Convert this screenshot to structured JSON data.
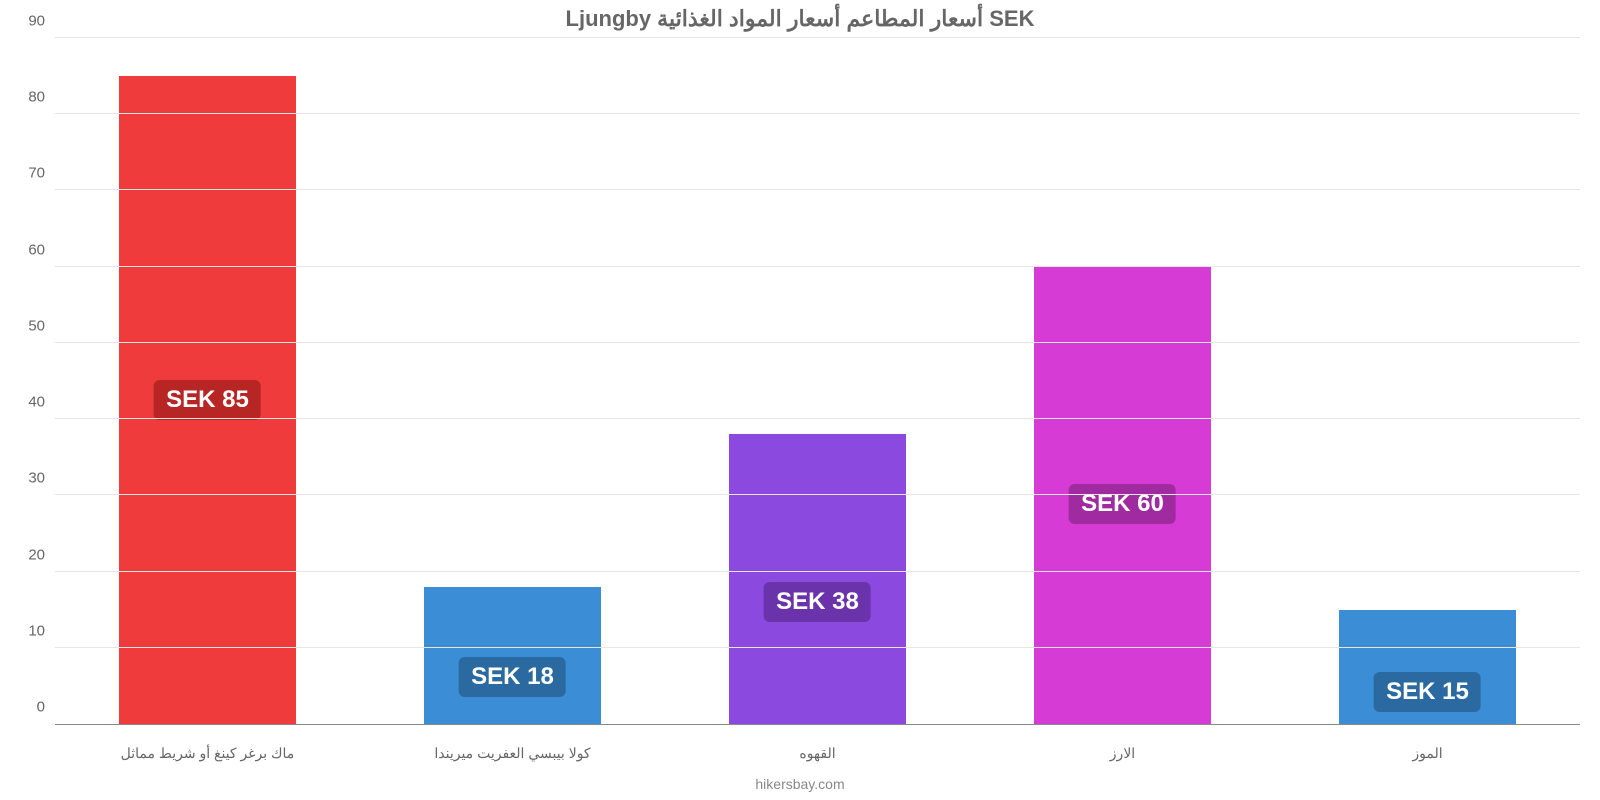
{
  "chart": {
    "type": "bar",
    "title": "Ljungby أسعار المطاعم أسعار المواد الغذائية SEK",
    "title_fontsize": 22,
    "title_color": "#666666",
    "background_color": "#ffffff",
    "grid_color": "#e6e6e6",
    "axis_color": "#888888",
    "axis_label_color": "#666666",
    "axis_label_fontsize": 15,
    "x_label_fontsize": 14,
    "ylim_min": 0,
    "ylim_max": 90,
    "ytick_step": 10,
    "bar_width_pct": 58,
    "value_badge_fontsize": 24,
    "value_badge_text_color": "#ffffff",
    "footer": "hikersbay.com",
    "footer_fontsize": 14,
    "footer_color": "#888888",
    "categories": [
      "ماك برغر كينغ أو شريط مماثل",
      "كولا بيبسي العفريت ميريندا",
      "القهوه",
      "الارز",
      "الموز"
    ],
    "values": [
      85,
      18,
      38,
      60,
      15
    ],
    "value_labels": [
      "SEK 85",
      "SEK 18",
      "SEK 38",
      "SEK 60",
      "SEK 15"
    ],
    "bar_colors": [
      "#ef3b3b",
      "#3b8ed6",
      "#8b49e0",
      "#d63bd6",
      "#3b8ed6"
    ],
    "badge_colors": [
      "#b82525",
      "#2b6aa0",
      "#6a33ab",
      "#a02ba0",
      "#2b6aa0"
    ],
    "label_anchor_pct": [
      50,
      66,
      58,
      52,
      72
    ]
  }
}
